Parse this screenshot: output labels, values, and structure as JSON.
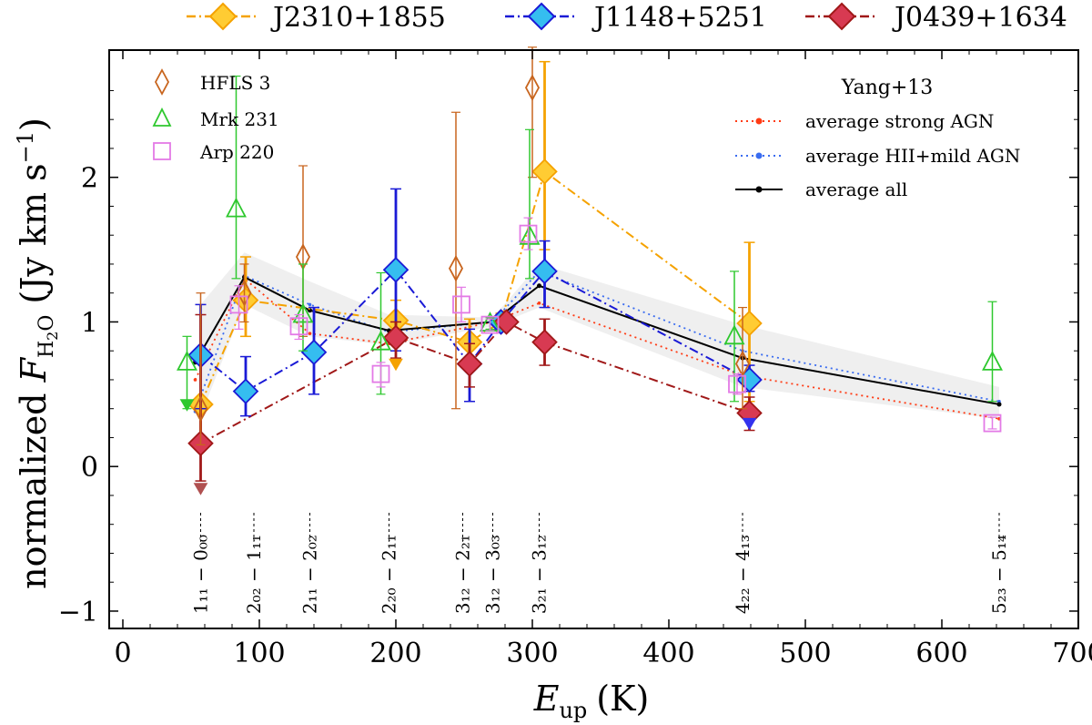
{
  "chart_data": {
    "type": "scatter",
    "xlabel_main": "E",
    "xlabel_sub": "up",
    "xlabel_unit": "(K)",
    "ylabel_main": "normalized ",
    "ylabel_var": "F",
    "ylabel_sub": "H",
    "ylabel_sub2": "2",
    "ylabel_sub3": "O",
    "ylabel_unit": "(Jy km s",
    "ylabel_unit_sup": "−1",
    "ylabel_unit_close": ")",
    "xlim": [
      -10,
      700
    ],
    "ylim": [
      -1.12,
      2.88
    ],
    "xticks": [
      0,
      100,
      200,
      300,
      400,
      500,
      600,
      700
    ],
    "yticks": [
      -1,
      0,
      1,
      2
    ],
    "transitions": [
      {
        "x": 57,
        "label": "1₁₁ − 0₀₀"
      },
      {
        "x": 96,
        "label": "2₀₂ − 1₁₁"
      },
      {
        "x": 137,
        "label": "2₁₁ − 2₀₂"
      },
      {
        "x": 195,
        "label": "2₂₀ − 2₁₁"
      },
      {
        "x": 249,
        "label": "3₁₂ − 2₂₁"
      },
      {
        "x": 271,
        "label": "3₁₂ − 3₀₃"
      },
      {
        "x": 305,
        "label": "3₂₁ − 3₁₂"
      },
      {
        "x": 454,
        "label": "4₂₂ − 4₁₃"
      },
      {
        "x": 642,
        "label": "5₂₃ − 5₁₄"
      }
    ],
    "top_legend": [
      {
        "name": "J2310+1855",
        "color": "#f5a200",
        "fill": "#ffcc33",
        "dash": "10,4,2,4"
      },
      {
        "name": "J1148+5251",
        "color": "#1a1ad6",
        "fill": "#35bdf0",
        "dash": "10,4,2,4"
      },
      {
        "name": "J0439+1634",
        "color": "#a01818",
        "fill": "#d83a52",
        "dash": "10,4,2,4"
      }
    ],
    "legend_left": [
      {
        "name": "HFLS 3",
        "marker": "diamond",
        "color": "#c8651e"
      },
      {
        "name": "Mrk 231",
        "marker": "triangle",
        "color": "#2ec82e"
      },
      {
        "name": "Arp 220",
        "marker": "square",
        "color": "#e37ae6"
      }
    ],
    "legend_right_title": "Yang+13",
    "legend_right": [
      {
        "name": "average strong AGN",
        "color": "#ff3b14",
        "style": "dotted"
      },
      {
        "name": "average HII+mild AGN",
        "color": "#3a6cf0",
        "style": "dotted"
      },
      {
        "name": "average all",
        "color": "#000000",
        "style": "solid"
      }
    ],
    "series": [
      {
        "name": "J2310+1855",
        "type": "line",
        "color": "#f5a200",
        "fill": "#ffcc33",
        "points": [
          {
            "x": 57,
            "y": 0.43,
            "lo": 0.15,
            "hi": 0.8
          },
          {
            "x": 90,
            "y": 1.15,
            "lo": 0.9,
            "hi": 1.45
          },
          {
            "x": 200,
            "y": 1.01,
            "lo": 0.88,
            "hi": 1.15
          },
          {
            "x": 254,
            "y": 0.86,
            "lo": 0.7,
            "hi": 1.02
          },
          {
            "x": 277,
            "y": 1.0,
            "lo": 0.94,
            "hi": 1.06
          },
          {
            "x": 309,
            "y": 2.04,
            "lo": 1.5,
            "hi": 2.8
          },
          {
            "x": 459,
            "y": 0.99,
            "lo": 0.45,
            "hi": 1.55
          }
        ]
      },
      {
        "name": "J1148+5251",
        "type": "line",
        "color": "#1a1ad6",
        "fill": "#35bdf0",
        "points": [
          {
            "x": 57,
            "y": 0.77,
            "lo": 0.4,
            "hi": 1.12
          },
          {
            "x": 90,
            "y": 0.52,
            "lo": 0.35,
            "hi": 0.76
          },
          {
            "x": 140,
            "y": 0.79,
            "lo": 0.5,
            "hi": 1.1
          },
          {
            "x": 200,
            "y": 1.36,
            "lo": 0.8,
            "hi": 1.92
          },
          {
            "x": 254,
            "y": 0.71,
            "lo": 0.45,
            "hi": 0.95
          },
          {
            "x": 277,
            "y": 1.0,
            "lo": 0.95,
            "hi": 1.05
          },
          {
            "x": 309,
            "y": 1.35,
            "lo": 1.1,
            "hi": 1.56
          },
          {
            "x": 459,
            "y": 0.6,
            "lo": 0.52,
            "hi": 0.7
          }
        ]
      },
      {
        "name": "J0439+1634",
        "type": "line",
        "color": "#a01818",
        "fill": "#d83a52",
        "points": [
          {
            "x": 57,
            "y": 0.16,
            "lo": -0.1,
            "hi": 1.05
          },
          {
            "x": 200,
            "y": 0.89,
            "lo": 0.75,
            "hi": 1.0
          },
          {
            "x": 254,
            "y": 0.71,
            "lo": 0.55,
            "hi": 0.85
          },
          {
            "x": 281,
            "y": 1.0,
            "lo": 0.95,
            "hi": 1.05
          },
          {
            "x": 309,
            "y": 0.86,
            "lo": 0.7,
            "hi": 1.02
          },
          {
            "x": 459,
            "y": 0.37,
            "lo": 0.25,
            "hi": 0.48
          }
        ]
      },
      {
        "name": "HFLS 3",
        "type": "points",
        "marker": "diamond",
        "color": "#c8651e",
        "points": [
          {
            "x": 57,
            "y": 0.4,
            "lo": 0.15,
            "hi": 1.2
          },
          {
            "x": 89,
            "y": 1.2,
            "lo": 1.0,
            "hi": 1.4
          },
          {
            "x": 132,
            "y": 1.45,
            "lo": 0.9,
            "hi": 2.08
          },
          {
            "x": 244,
            "y": 1.37,
            "lo": 0.4,
            "hi": 2.45
          },
          {
            "x": 300,
            "y": 2.62,
            "lo": 2.0,
            "hi": 2.9
          },
          {
            "x": 454,
            "y": 0.71,
            "lo": 0.4,
            "hi": 1.1
          }
        ]
      },
      {
        "name": "Mrk 231",
        "type": "points",
        "marker": "triangle",
        "color": "#2ec82e",
        "points": [
          {
            "x": 47,
            "y": 0.72,
            "lo": 0.4,
            "hi": 0.9
          },
          {
            "x": 83,
            "y": 1.78,
            "lo": 1.3,
            "hi": 2.7
          },
          {
            "x": 132,
            "y": 1.05,
            "lo": 0.8,
            "hi": 1.4
          },
          {
            "x": 189,
            "y": 0.86,
            "lo": 0.5,
            "hi": 1.34
          },
          {
            "x": 269,
            "y": 0.99,
            "lo": 0.95,
            "hi": 1.03
          },
          {
            "x": 298,
            "y": 1.59,
            "lo": 1.3,
            "hi": 2.33
          },
          {
            "x": 448,
            "y": 0.9,
            "lo": 0.45,
            "hi": 1.35
          },
          {
            "x": 637,
            "y": 0.72,
            "lo": 0.45,
            "hi": 1.14
          }
        ]
      },
      {
        "name": "Arp 220",
        "type": "points",
        "marker": "square",
        "color": "#e37ae6",
        "points": [
          {
            "x": 85,
            "y": 1.12,
            "lo": 0.95,
            "hi": 1.25
          },
          {
            "x": 129,
            "y": 0.97,
            "lo": 0.88,
            "hi": 1.05
          },
          {
            "x": 189,
            "y": 0.64,
            "lo": 0.55,
            "hi": 0.72
          },
          {
            "x": 248,
            "y": 1.12,
            "lo": 1.0,
            "hi": 1.24
          },
          {
            "x": 269,
            "y": 0.98,
            "lo": 0.94,
            "hi": 1.02
          },
          {
            "x": 297,
            "y": 1.61,
            "lo": 1.5,
            "hi": 1.72
          },
          {
            "x": 450,
            "y": 0.57,
            "lo": 0.5,
            "hi": 0.64
          },
          {
            "x": 637,
            "y": 0.3,
            "lo": 0.26,
            "hi": 0.34
          }
        ]
      },
      {
        "name": "average strong AGN",
        "type": "avg",
        "color": "#ff3b14",
        "style": "dotted",
        "points": [
          {
            "x": 53,
            "y": 0.6
          },
          {
            "x": 89,
            "y": 1.3
          },
          {
            "x": 137,
            "y": 0.92
          },
          {
            "x": 195,
            "y": 0.85
          },
          {
            "x": 271,
            "y": 1.0
          },
          {
            "x": 305,
            "y": 1.13
          },
          {
            "x": 454,
            "y": 0.63
          },
          {
            "x": 642,
            "y": 0.33
          }
        ]
      },
      {
        "name": "average HII+mild AGN",
        "type": "avg",
        "color": "#3a6cf0",
        "style": "dotted",
        "points": [
          {
            "x": 53,
            "y": 0.38
          },
          {
            "x": 89,
            "y": 1.32
          },
          {
            "x": 137,
            "y": 1.12
          },
          {
            "x": 195,
            "y": 0.93
          },
          {
            "x": 271,
            "y": 1.0
          },
          {
            "x": 305,
            "y": 1.35
          },
          {
            "x": 454,
            "y": 0.8
          },
          {
            "x": 642,
            "y": 0.45
          }
        ]
      },
      {
        "name": "average all",
        "type": "avg",
        "color": "#000000",
        "style": "solid",
        "points": [
          {
            "x": 53,
            "y": 0.72
          },
          {
            "x": 89,
            "y": 1.31
          },
          {
            "x": 137,
            "y": 1.08
          },
          {
            "x": 195,
            "y": 0.94
          },
          {
            "x": 271,
            "y": 1.0
          },
          {
            "x": 305,
            "y": 1.25
          },
          {
            "x": 454,
            "y": 0.75
          },
          {
            "x": 642,
            "y": 0.43
          }
        ]
      }
    ],
    "upper_limits": [
      {
        "x": 47,
        "y": 0.4,
        "color": "#2ec82e"
      },
      {
        "x": 57,
        "y": -0.18,
        "color": "#b05050"
      },
      {
        "x": 200,
        "y": 0.68,
        "color": "#f5a200"
      },
      {
        "x": 459,
        "y": 0.27,
        "color": "#3333ee"
      }
    ],
    "band": {
      "upper": [
        {
          "x": 57,
          "y": 1.12
        },
        {
          "x": 89,
          "y": 1.48
        },
        {
          "x": 137,
          "y": 1.28
        },
        {
          "x": 195,
          "y": 1.05
        },
        {
          "x": 271,
          "y": 1.03
        },
        {
          "x": 305,
          "y": 1.4
        },
        {
          "x": 454,
          "y": 0.98
        },
        {
          "x": 642,
          "y": 0.55
        }
      ],
      "lower": [
        {
          "x": 57,
          "y": 0.35
        },
        {
          "x": 89,
          "y": 1.12
        },
        {
          "x": 137,
          "y": 0.9
        },
        {
          "x": 195,
          "y": 0.84
        },
        {
          "x": 271,
          "y": 0.97
        },
        {
          "x": 305,
          "y": 1.1
        },
        {
          "x": 454,
          "y": 0.55
        },
        {
          "x": 642,
          "y": 0.33
        }
      ]
    }
  }
}
